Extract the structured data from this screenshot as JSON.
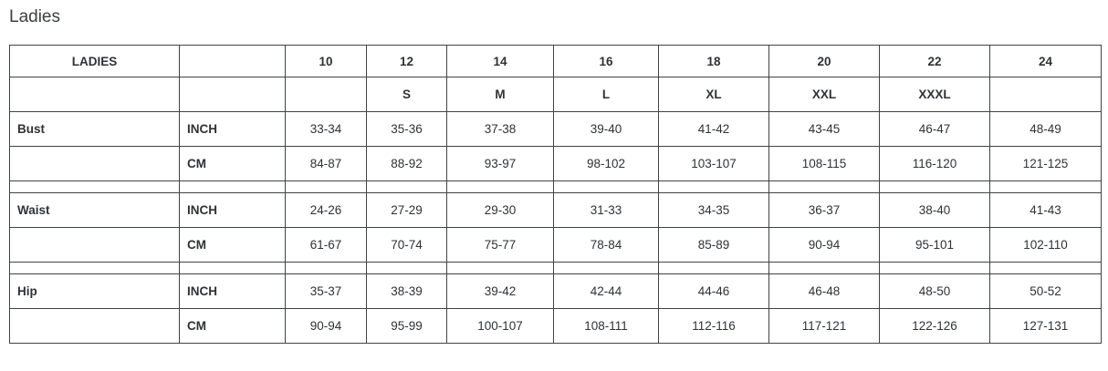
{
  "page": {
    "title": "Ladies"
  },
  "colors": {
    "border": "#404346",
    "text": "#2e3236",
    "title": "#3c4043",
    "background": "#ffffff"
  },
  "table": {
    "rows": [
      {
        "kind": "header",
        "cells": [
          "LADIES",
          "",
          "10",
          "12",
          "14",
          "16",
          "18",
          "20",
          "22",
          "24"
        ]
      },
      {
        "kind": "subheader",
        "cells": [
          "",
          "",
          "",
          "S",
          "M",
          "L",
          "XL",
          "XXL",
          "XXXL",
          ""
        ]
      },
      {
        "kind": "data",
        "cells": [
          "Bust",
          "INCH",
          "33-34",
          "35-36",
          "37-38",
          "39-40",
          "41-42",
          "43-45",
          "46-47",
          "48-49"
        ]
      },
      {
        "kind": "data",
        "cells": [
          "",
          "CM",
          "84-87",
          "88-92",
          "93-97",
          "98-102",
          "103-107",
          "108-115",
          "116-120",
          "121-125"
        ]
      },
      {
        "kind": "spacer",
        "cells": [
          "",
          "",
          "",
          "",
          "",
          "",
          "",
          "",
          "",
          ""
        ]
      },
      {
        "kind": "data",
        "cells": [
          "Waist",
          "INCH",
          "24-26",
          "27-29",
          "29-30",
          "31-33",
          "34-35",
          "36-37",
          "38-40",
          "41-43"
        ]
      },
      {
        "kind": "data",
        "cells": [
          "",
          "CM",
          "61-67",
          "70-74",
          "75-77",
          "78-84",
          "85-89",
          "90-94",
          "95-101",
          "102-110"
        ]
      },
      {
        "kind": "spacer",
        "cells": [
          "",
          "",
          "",
          "",
          "",
          "",
          "",
          "",
          "",
          ""
        ]
      },
      {
        "kind": "data",
        "cells": [
          "Hip",
          "INCH",
          "35-37",
          "38-39",
          "39-42",
          "42-44",
          "44-46",
          "46-48",
          "48-50",
          "50-52"
        ]
      },
      {
        "kind": "data",
        "cells": [
          "",
          "CM",
          "90-94",
          "95-99",
          "100-107",
          "108-111",
          "112-116",
          "117-121",
          "122-126",
          "127-131"
        ]
      }
    ]
  }
}
